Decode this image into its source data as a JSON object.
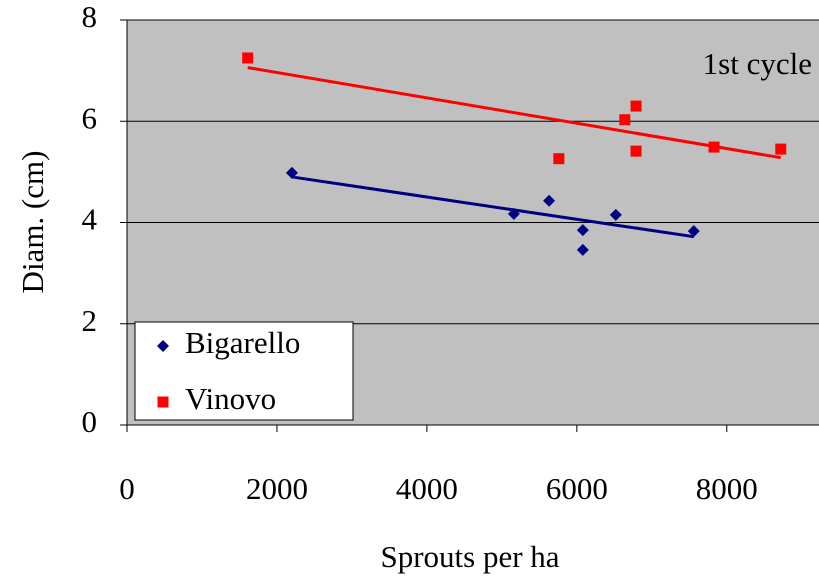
{
  "chart_data": {
    "type": "scatter",
    "x_label": "Sprouts per ha",
    "y_label": "Diam. (cm)",
    "annotation": "1st cycle",
    "xlim": [
      0,
      9230
    ],
    "ylim": [
      0,
      8
    ],
    "xticks": [
      0,
      2000,
      4000,
      6000,
      8000
    ],
    "yticks": [
      0,
      2,
      4,
      6,
      8
    ],
    "grid": true,
    "legend": "lower left",
    "background": "#c0c0c0",
    "series": [
      {
        "name": "Bigarello",
        "color": "#000080",
        "marker": "diamond",
        "x": [
          2200,
          5160,
          5630,
          6080,
          6080,
          6520,
          7560
        ],
        "values": [
          4.98,
          4.17,
          4.43,
          3.85,
          3.46,
          4.15,
          3.83
        ],
        "trend": {
          "x": [
            2200,
            7560
          ],
          "values": [
            4.9,
            3.72
          ]
        }
      },
      {
        "name": "Vinovo",
        "color": "#ff0000",
        "marker": "square",
        "x": [
          1610,
          5760,
          6640,
          6790,
          6790,
          7830,
          8720
        ],
        "values": [
          7.25,
          5.26,
          6.03,
          6.3,
          5.41,
          5.49,
          5.45
        ],
        "trend": {
          "x": [
            1610,
            8720
          ],
          "values": [
            7.06,
            5.28
          ]
        }
      }
    ]
  }
}
